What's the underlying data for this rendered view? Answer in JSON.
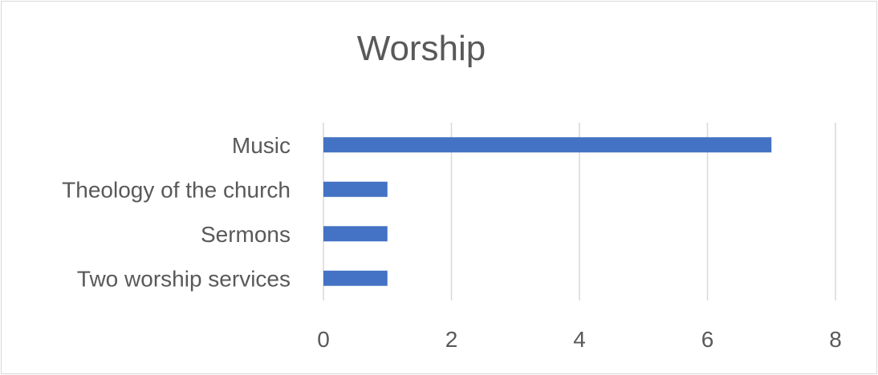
{
  "chart_data": {
    "type": "bar",
    "orientation": "horizontal",
    "title": "Worship",
    "categories": [
      "Music",
      "Theology of the church",
      "Sermons",
      "Two worship services"
    ],
    "values": [
      7,
      1,
      1,
      1
    ],
    "xlim": [
      0,
      8
    ],
    "xticks": [
      0,
      2,
      4,
      6,
      8
    ],
    "grid": true,
    "legend": "none",
    "bar_color": "#4472c4"
  }
}
